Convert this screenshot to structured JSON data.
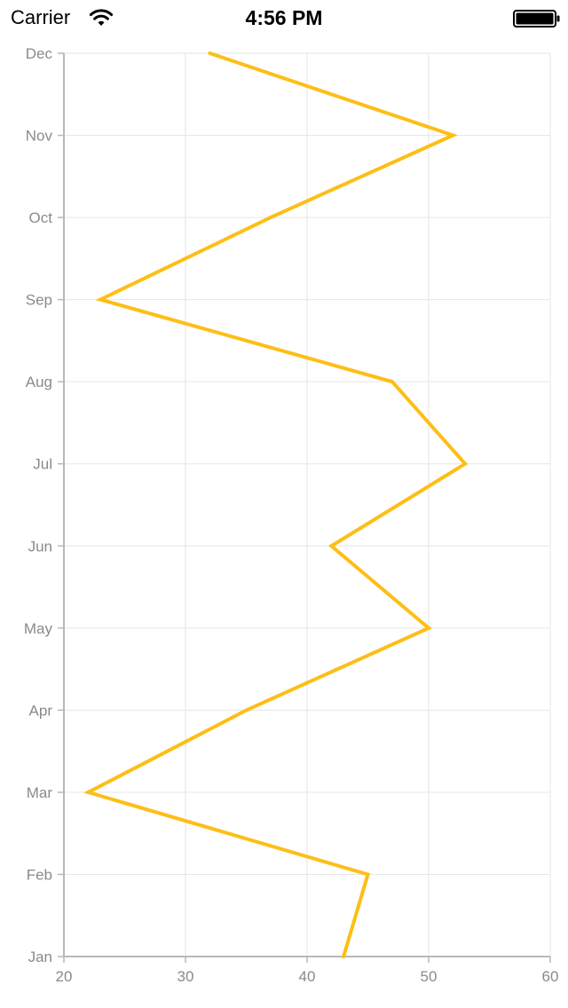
{
  "status_bar": {
    "carrier": "Carrier",
    "time": "4:56 PM",
    "wifi_icon": "wifi-icon",
    "battery_icon": "battery-full-icon"
  },
  "chart_data": {
    "type": "line",
    "orientation": "horizontal",
    "categories": [
      "Jan",
      "Feb",
      "Mar",
      "Apr",
      "May",
      "Jun",
      "Jul",
      "Aug",
      "Sep",
      "Oct",
      "Nov",
      "Dec"
    ],
    "series": [
      {
        "values": [
          43,
          45,
          22,
          35,
          50,
          42,
          53,
          47,
          23,
          37,
          52,
          32
        ],
        "color": "#FDBE16"
      }
    ],
    "value_axis": {
      "min": 20,
      "max": 60,
      "ticks": [
        20,
        30,
        40,
        50,
        60
      ]
    },
    "title": "",
    "xlabel": "",
    "ylabel": "",
    "grid": true,
    "legend": "none",
    "colors": {
      "line": "#FDBE16",
      "grid": "#e6e6e6",
      "axis": "#b8b8b8",
      "tick_text": "#8a8a8a"
    }
  }
}
